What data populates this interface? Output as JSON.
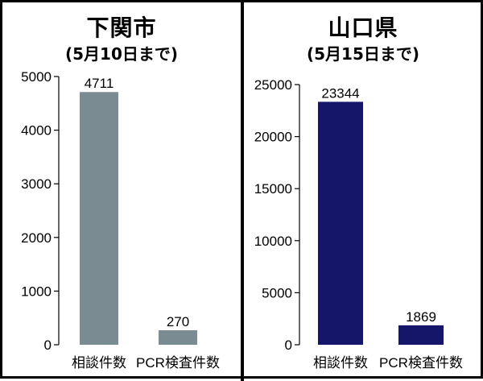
{
  "chart_data": [
    {
      "type": "bar",
      "title": "下関市",
      "subtitle": "(5月10日まで)",
      "categories": [
        "相談件数",
        "PCR検査件数"
      ],
      "values": [
        4711,
        270
      ],
      "value_labels": [
        "4711",
        "270"
      ],
      "ylim": [
        0,
        5000
      ],
      "yticks": [
        0,
        1000,
        2000,
        3000,
        4000,
        5000
      ],
      "ytick_labels": [
        "0",
        "1000",
        "2000",
        "3000",
        "4000",
        "5000"
      ],
      "bar_color": "#7b8b92",
      "grid": false
    },
    {
      "type": "bar",
      "title": "山口県",
      "subtitle": "(5月15日まで)",
      "categories": [
        "相談件数",
        "PCR検査件数"
      ],
      "values": [
        23344,
        1869
      ],
      "value_labels": [
        "23344",
        "1869"
      ],
      "ylim": [
        0,
        25000
      ],
      "yticks": [
        0,
        5000,
        10000,
        15000,
        20000,
        25000
      ],
      "ytick_labels": [
        "0",
        "5000",
        "10000",
        "15000",
        "20000",
        "25000"
      ],
      "bar_color": "#15156a",
      "grid": false
    }
  ]
}
